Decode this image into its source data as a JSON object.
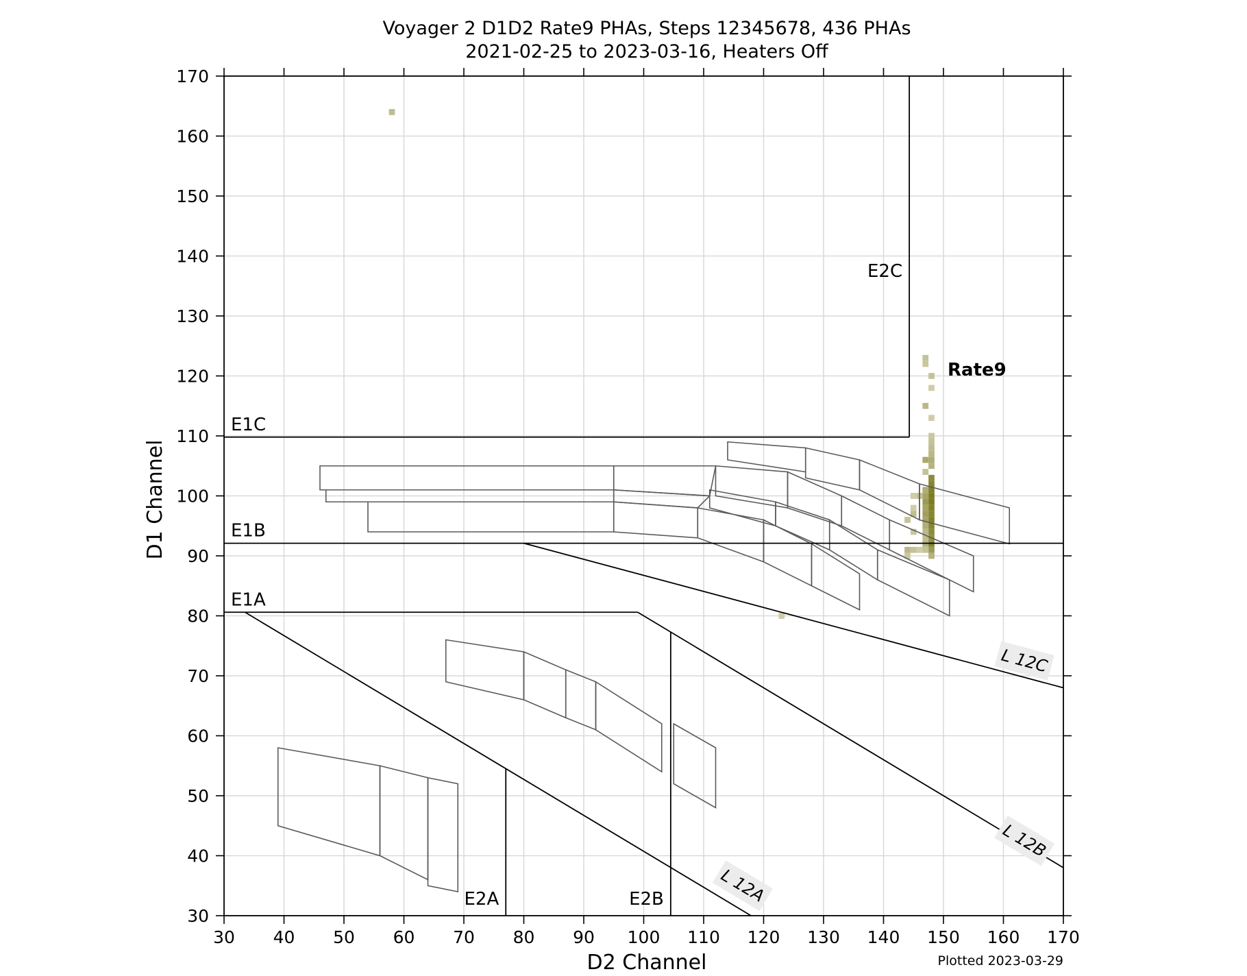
{
  "chart_data": {
    "type": "scatter",
    "title": "Voyager 2 D1D2 Rate9 PHAs, Steps 12345678, 436 PHAs",
    "subtitle": "2021-02-25 to 2023-03-16, Heaters Off",
    "xlabel": "D2 Channel",
    "ylabel": "D1 Channel",
    "xlim": [
      30,
      170
    ],
    "ylim": [
      30,
      170
    ],
    "xticks": [
      30,
      40,
      50,
      60,
      70,
      80,
      90,
      100,
      110,
      120,
      130,
      140,
      150,
      160,
      170
    ],
    "yticks": [
      30,
      40,
      50,
      60,
      70,
      80,
      90,
      100,
      110,
      120,
      130,
      140,
      150,
      160,
      170
    ],
    "grid": true,
    "footer": "Plotted 2023-03-29",
    "colors": {
      "heat_low": "#e3e0c9",
      "heat_high": "#7d7c22",
      "grid": "#d9d9d9",
      "line": "#000000",
      "box": "#5a5a5a",
      "label_bg": "#ececec"
    },
    "threshold_lines": [
      {
        "name": "E1C",
        "label": "E1C",
        "orientation": "horizontal",
        "y": 109.8,
        "x_range": [
          30,
          144.3
        ]
      },
      {
        "name": "E1B",
        "label": "E1B",
        "orientation": "horizontal",
        "y": 92.1,
        "x_range": [
          30,
          170
        ]
      },
      {
        "name": "E1A",
        "label": "E1A",
        "orientation": "horizontal",
        "y": 80.6,
        "x_range": [
          30,
          99
        ]
      },
      {
        "name": "E2C",
        "label": "E2C",
        "orientation": "vertical",
        "x": 144.3,
        "y_range": [
          109.8,
          170
        ]
      },
      {
        "name": "E2B",
        "label": "E2B",
        "orientation": "vertical",
        "x": 104.5,
        "y_range": [
          30,
          77.3
        ]
      },
      {
        "name": "E2A",
        "label": "E2A",
        "orientation": "vertical",
        "x": 77.0,
        "y_range": [
          30,
          54.5
        ]
      }
    ],
    "diagonal_lines": [
      {
        "name": "L12A",
        "label": "L 12A",
        "points": [
          [
            33.5,
            80.6
          ],
          [
            117.9,
            30
          ]
        ]
      },
      {
        "name": "L12B",
        "label": "L 12B",
        "points": [
          [
            99.0,
            80.6
          ],
          [
            170,
            38
          ]
        ]
      },
      {
        "name": "L12C",
        "label": "L 12C",
        "points": [
          [
            80.0,
            92.1
          ],
          [
            170,
            68
          ]
        ]
      }
    ],
    "boxes": [
      [
        [
          39,
          58
        ],
        [
          56,
          55
        ],
        [
          56,
          40
        ],
        [
          39,
          45
        ]
      ],
      [
        [
          56,
          55
        ],
        [
          64,
          53
        ],
        [
          64,
          36
        ],
        [
          56,
          40
        ]
      ],
      [
        [
          64,
          53
        ],
        [
          69,
          52
        ],
        [
          69,
          34
        ],
        [
          64,
          35
        ]
      ],
      [
        [
          67,
          76
        ],
        [
          80,
          74
        ],
        [
          80,
          66
        ],
        [
          67,
          69
        ]
      ],
      [
        [
          80,
          74
        ],
        [
          87,
          71
        ],
        [
          87,
          63
        ],
        [
          80,
          66
        ]
      ],
      [
        [
          87,
          71
        ],
        [
          92,
          69
        ],
        [
          92,
          61
        ],
        [
          87,
          63
        ]
      ],
      [
        [
          92,
          69
        ],
        [
          103,
          62
        ],
        [
          103,
          54
        ],
        [
          92,
          61
        ]
      ],
      [
        [
          105,
          62
        ],
        [
          112,
          58
        ],
        [
          112,
          48
        ],
        [
          105,
          52
        ]
      ],
      [
        [
          46,
          105
        ],
        [
          95,
          105
        ],
        [
          95,
          101
        ],
        [
          46,
          101
        ]
      ],
      [
        [
          47,
          101
        ],
        [
          95,
          101
        ],
        [
          95,
          99
        ],
        [
          47,
          99
        ]
      ],
      [
        [
          54,
          99
        ],
        [
          95,
          99
        ],
        [
          95,
          94
        ],
        [
          54,
          94
        ]
      ],
      [
        [
          95,
          105
        ],
        [
          112,
          105
        ],
        [
          111,
          100
        ],
        [
          95,
          101
        ]
      ],
      [
        [
          95,
          101
        ],
        [
          111,
          100
        ],
        [
          109,
          98
        ],
        [
          95,
          99
        ]
      ],
      [
        [
          95,
          99
        ],
        [
          109,
          98
        ],
        [
          109,
          93
        ],
        [
          95,
          94
        ]
      ],
      [
        [
          112,
          105
        ],
        [
          124,
          104
        ],
        [
          124,
          98
        ],
        [
          112,
          100
        ]
      ],
      [
        [
          111,
          101
        ],
        [
          122,
          99
        ],
        [
          122,
          95
        ],
        [
          111,
          98
        ]
      ],
      [
        [
          109,
          98
        ],
        [
          120,
          96
        ],
        [
          120,
          89
        ],
        [
          109,
          93
        ]
      ],
      [
        [
          114,
          109
        ],
        [
          127,
          108
        ],
        [
          127,
          104
        ],
        [
          114,
          106
        ]
      ],
      [
        [
          127,
          108
        ],
        [
          136,
          106
        ],
        [
          136,
          101
        ],
        [
          127,
          103
        ]
      ],
      [
        [
          124,
          104
        ],
        [
          133,
          100
        ],
        [
          133,
          95
        ],
        [
          124,
          98
        ]
      ],
      [
        [
          122,
          99
        ],
        [
          131,
          96
        ],
        [
          131,
          91
        ],
        [
          122,
          95
        ]
      ],
      [
        [
          120,
          96
        ],
        [
          128,
          92
        ],
        [
          128,
          85
        ],
        [
          120,
          89
        ]
      ],
      [
        [
          136,
          106
        ],
        [
          146,
          102
        ],
        [
          146,
          96
        ],
        [
          136,
          101
        ]
      ],
      [
        [
          133,
          100
        ],
        [
          141,
          96
        ],
        [
          141,
          91
        ],
        [
          133,
          95
        ]
      ],
      [
        [
          131,
          96
        ],
        [
          139,
          91
        ],
        [
          139,
          86
        ],
        [
          131,
          91
        ]
      ],
      [
        [
          128,
          92
        ],
        [
          136,
          87
        ],
        [
          136,
          81
        ],
        [
          128,
          85
        ]
      ],
      [
        [
          146,
          102
        ],
        [
          161,
          98
        ],
        [
          161,
          92
        ],
        [
          146,
          96
        ]
      ],
      [
        [
          141,
          96
        ],
        [
          155,
          90
        ],
        [
          155,
          84
        ],
        [
          141,
          91
        ]
      ],
      [
        [
          139,
          91
        ],
        [
          151,
          86
        ],
        [
          151,
          80
        ],
        [
          139,
          86
        ]
      ]
    ],
    "points": [
      [
        58,
        164,
        0.35
      ],
      [
        123,
        80,
        0.2
      ],
      [
        147,
        123,
        0.3
      ],
      [
        147,
        122,
        0.25
      ],
      [
        148,
        120,
        0.3
      ],
      [
        148,
        118,
        0.2
      ],
      [
        147,
        115,
        0.4
      ],
      [
        148,
        113,
        0.2
      ],
      [
        148,
        110,
        0.25
      ],
      [
        148,
        109,
        0.3
      ],
      [
        148,
        108,
        0.35
      ],
      [
        148,
        107,
        0.4
      ],
      [
        147,
        106,
        0.55
      ],
      [
        148,
        106,
        0.5
      ],
      [
        148,
        105,
        0.45
      ],
      [
        147,
        104,
        0.3
      ],
      [
        148,
        103,
        0.85
      ],
      [
        148,
        102,
        0.9
      ],
      [
        148,
        101,
        0.95
      ],
      [
        147,
        101,
        0.5
      ],
      [
        148,
        100,
        1.0
      ],
      [
        147,
        100,
        0.6
      ],
      [
        146,
        100,
        0.3
      ],
      [
        145,
        100,
        0.2
      ],
      [
        148,
        99,
        1.0
      ],
      [
        147,
        99,
        0.7
      ],
      [
        148,
        98,
        0.95
      ],
      [
        147,
        98,
        0.6
      ],
      [
        145,
        98,
        0.2
      ],
      [
        148,
        97,
        0.9
      ],
      [
        147,
        97,
        0.65
      ],
      [
        145,
        97,
        0.35
      ],
      [
        148,
        96,
        0.95
      ],
      [
        147,
        96,
        0.6
      ],
      [
        144,
        96,
        0.3
      ],
      [
        148,
        95,
        0.9
      ],
      [
        147,
        95,
        0.5
      ],
      [
        148,
        94,
        0.85
      ],
      [
        147,
        94,
        0.4
      ],
      [
        145,
        94,
        0.25
      ],
      [
        148,
        93,
        0.8
      ],
      [
        147,
        93,
        0.35
      ],
      [
        148,
        92,
        0.9
      ],
      [
        147,
        92,
        0.45
      ],
      [
        148,
        91,
        0.7
      ],
      [
        147,
        91,
        0.3
      ],
      [
        146,
        91,
        0.2
      ],
      [
        145,
        91,
        0.3
      ],
      [
        144,
        91,
        0.4
      ],
      [
        148,
        90,
        0.45
      ],
      [
        144,
        90,
        0.25
      ]
    ],
    "annotation": {
      "label": "Rate9",
      "x": 150,
      "y": 121
    }
  }
}
